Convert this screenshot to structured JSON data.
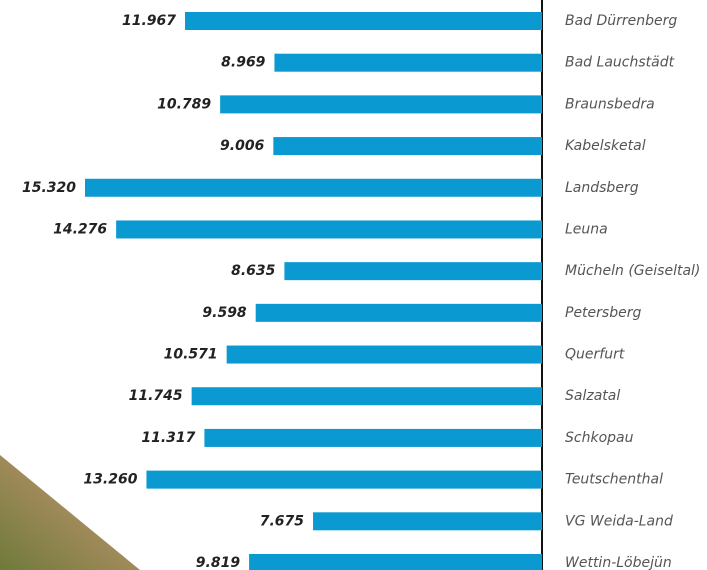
{
  "chart_data": {
    "type": "bar",
    "orientation": "horizontal",
    "color": "#0a99d0",
    "categories": [
      "Bad Dürrenberg",
      "Bad Lauchstädt",
      "Braunsbedra",
      "Kabelsketal",
      "Landsberg",
      "Leuna",
      "Mücheln (Geiseltal)",
      "Petersberg",
      "Querfurt",
      "Salzatal",
      "Schkopau",
      "Teutschenthal",
      "VG Weida-Land",
      "Wettin-Löbejün"
    ],
    "values": [
      11967,
      8969,
      10789,
      9006,
      15320,
      14276,
      8635,
      9598,
      10571,
      11745,
      11317,
      13260,
      7675,
      9819
    ],
    "value_labels": [
      "11.967",
      "8.969",
      "10.789",
      "9.006",
      "15.320",
      "14.276",
      "8.635",
      "9.598",
      "10.571",
      "11.745",
      "11.317",
      "13.260",
      "7.675",
      "9.819"
    ]
  }
}
